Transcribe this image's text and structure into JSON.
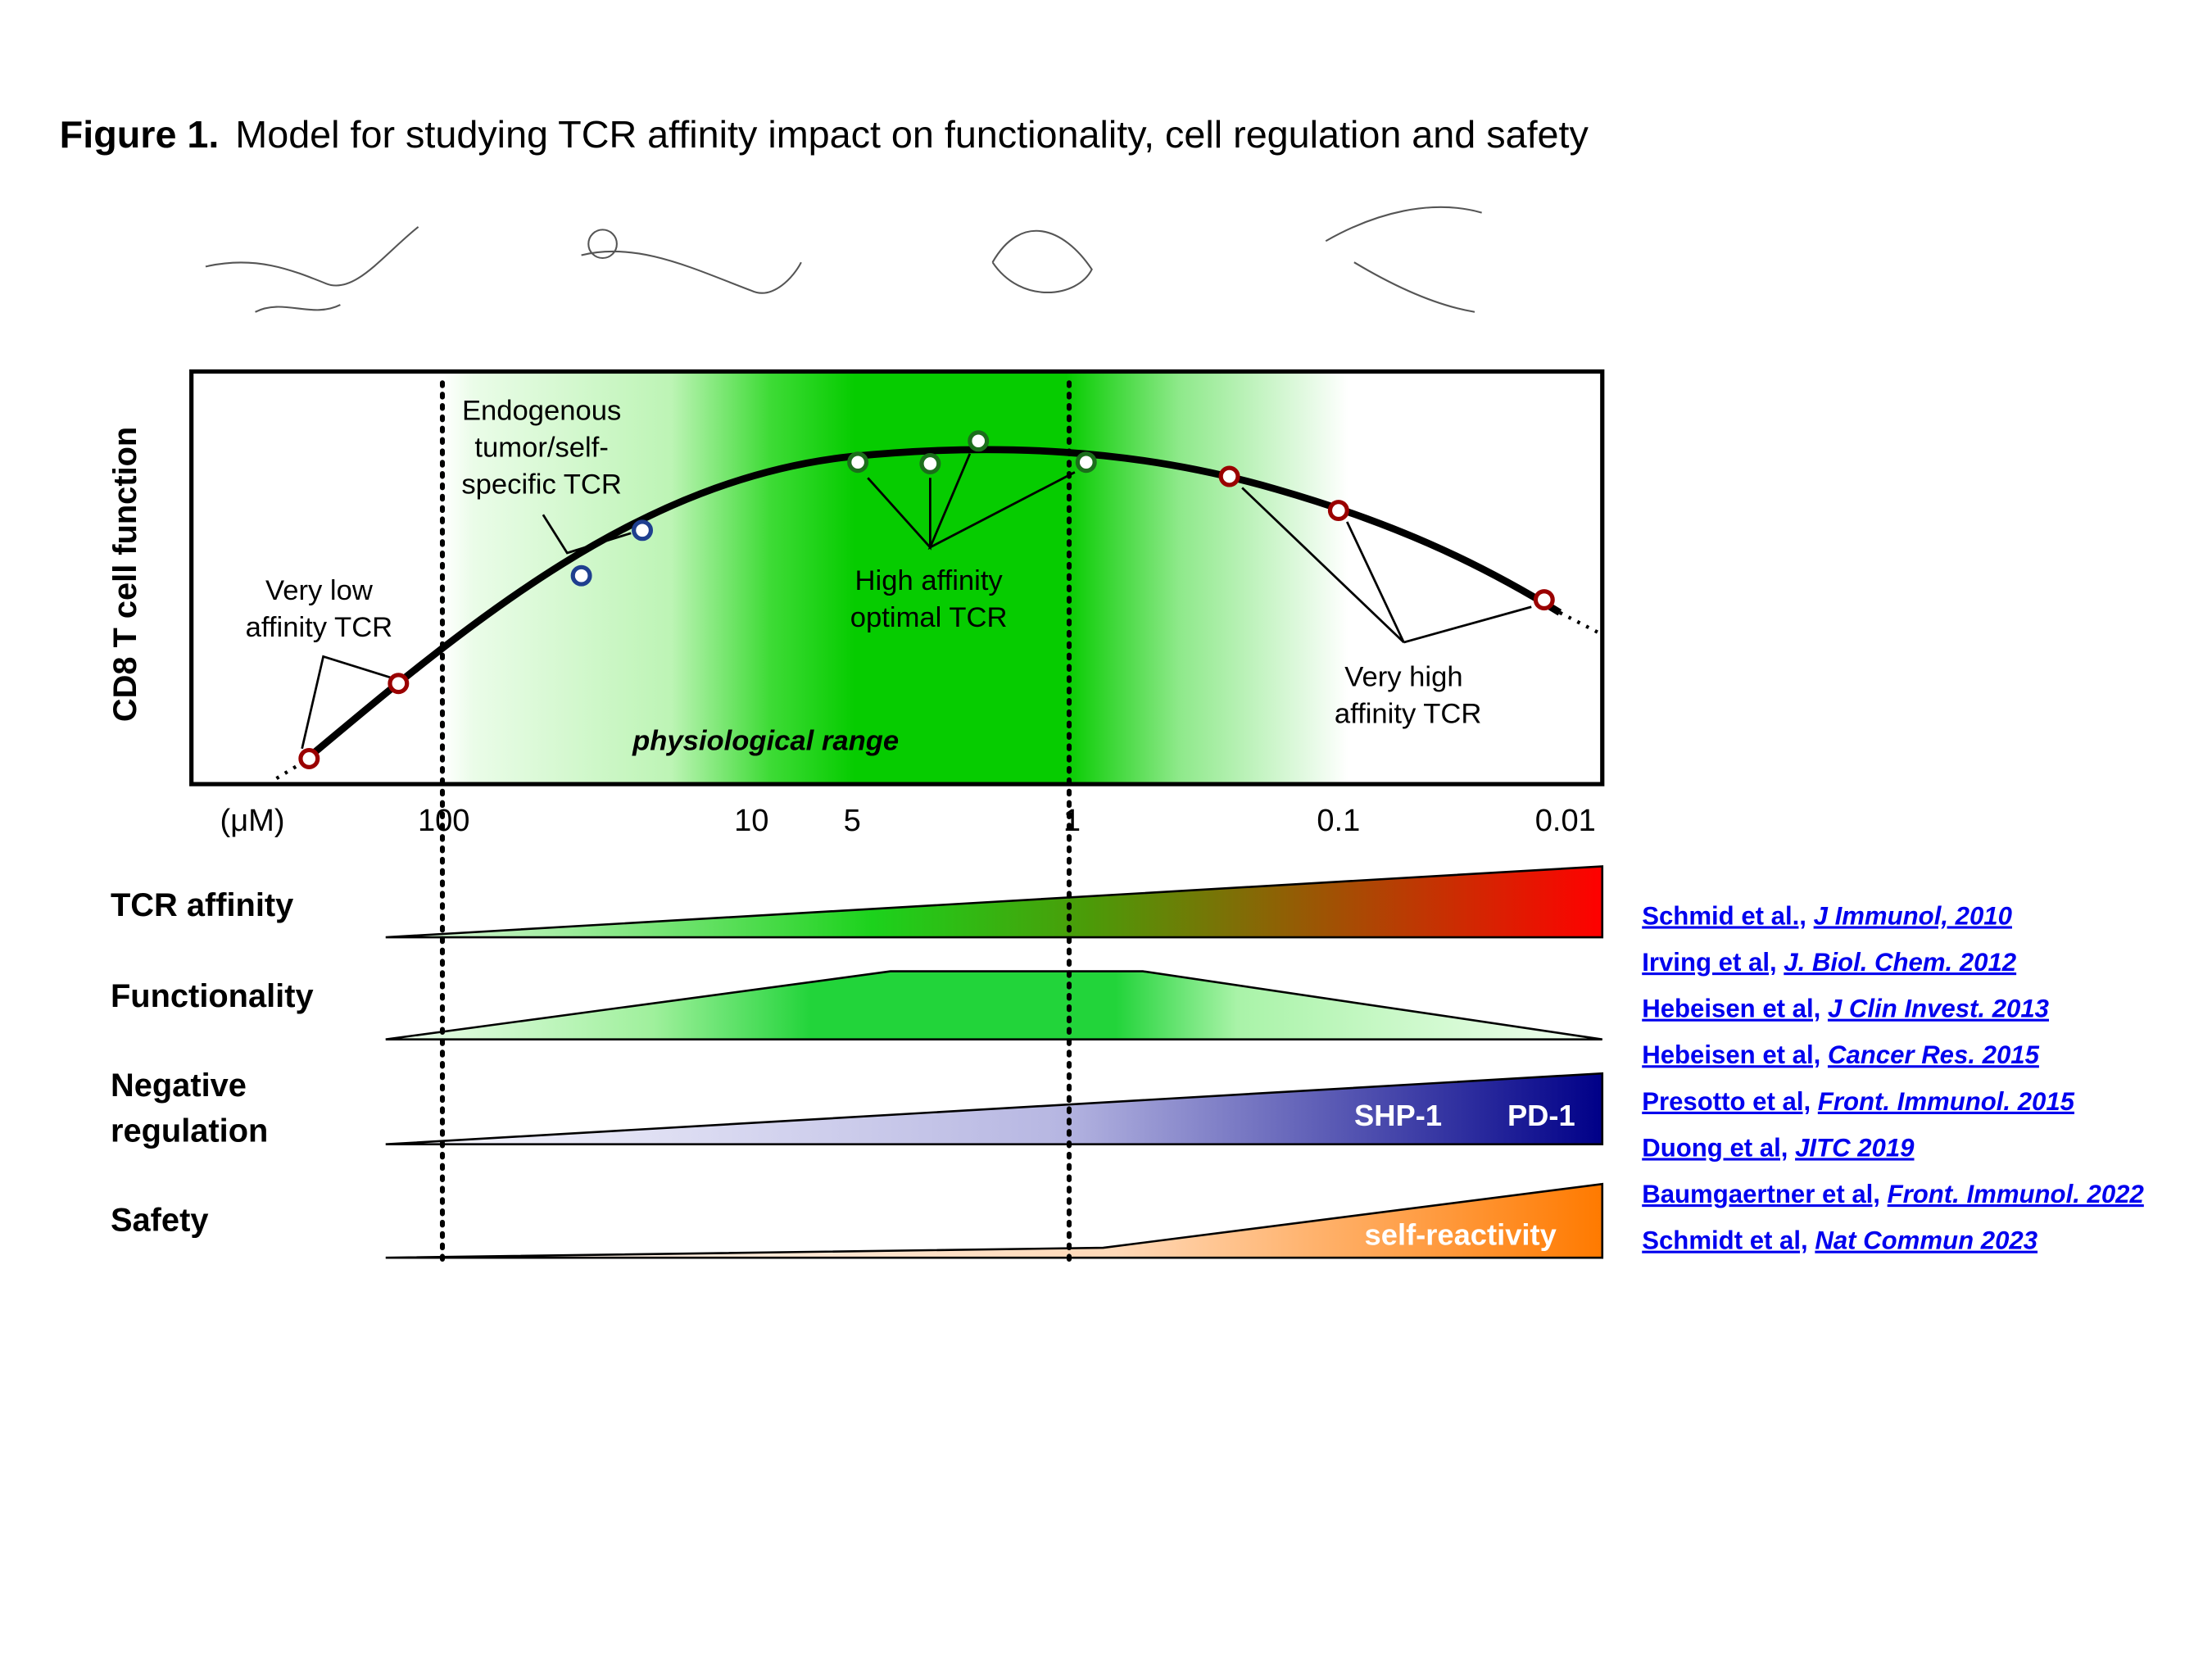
{
  "figure": {
    "label": "Figure 1.",
    "caption": "Model for studying TCR affinity impact on functionality, cell regulation and safety"
  },
  "plot": {
    "y_axis_label": "CD8 T cell function",
    "x_unit": "(μM)",
    "x_ticks": [
      "100",
      "10",
      "5",
      "1",
      "0.1",
      "0.01"
    ],
    "region_label": "physiological range",
    "annotations": [
      {
        "lines": [
          "Very low",
          "affinity TCR"
        ]
      },
      {
        "lines": [
          "Endogenous",
          "tumor/self-",
          "specific TCR"
        ]
      },
      {
        "lines": [
          "High affinity",
          "optimal TCR"
        ]
      },
      {
        "lines": [
          "Very high",
          "affinity TCR"
        ]
      }
    ]
  },
  "rows": [
    {
      "label": [
        "TCR affinity"
      ]
    },
    {
      "label": [
        "Functionality"
      ]
    },
    {
      "label": [
        "Negative",
        "regulation"
      ],
      "tags": [
        "SHP-1",
        "PD-1"
      ]
    },
    {
      "label": [
        "Safety"
      ],
      "tags": [
        "self-reactivity"
      ]
    }
  ],
  "references": [
    {
      "authors": "Schmid et al.,",
      "journal": "J Immunol, 2010"
    },
    {
      "authors": "Irving et al,",
      "journal": "J. Biol. Chem. 2012"
    },
    {
      "authors": "Hebeisen et al,",
      "journal": "J Clin Invest. 2013"
    },
    {
      "authors": "Hebeisen et al,",
      "journal": "Cancer Res. 2015"
    },
    {
      "authors": "Presotto et al,",
      "journal": "Front. Immunol. 2015"
    },
    {
      "authors": "Duong et al,",
      "journal": "JITC 2019"
    },
    {
      "authors": "Baumgaertner et al,",
      "journal": "Front. Immunol. 2022"
    },
    {
      "authors": "Schmidt et al,",
      "journal": "Nat Commun 2023"
    }
  ]
}
